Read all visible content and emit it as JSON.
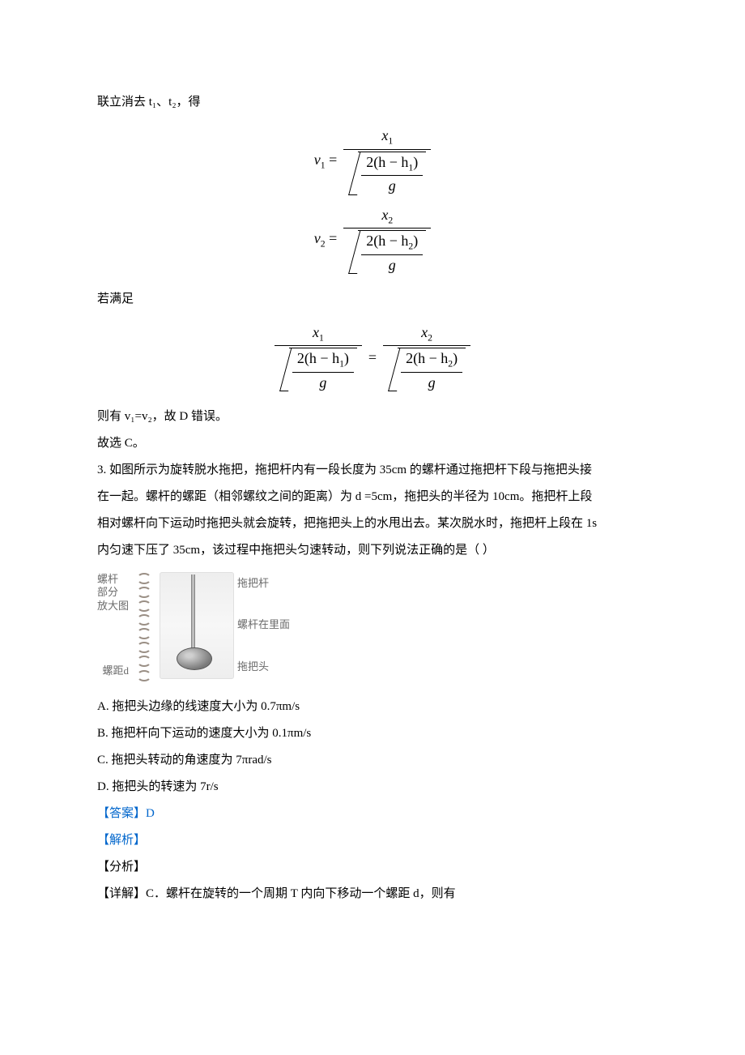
{
  "colors": {
    "text": "#000000",
    "link": "#0066cc",
    "background": "#ffffff",
    "figure_label": "#6b6b6b",
    "screw_color": "#9a8f85",
    "disc_dark": "#7a7a7a"
  },
  "typography": {
    "body_font": "SimSun",
    "math_font": "Times New Roman",
    "body_size_pt": 11,
    "math_size_pt": 13,
    "line_height": 2.2
  },
  "intro_line": "联立消去 t₁、t₂，得",
  "eq1": {
    "lhs": "v",
    "lhs_sub": "1",
    "frac_top": "x",
    "frac_top_sub": "1",
    "inner_num_a": "2(h − h",
    "inner_num_sub": "1",
    "inner_num_b": ")",
    "inner_den": "g"
  },
  "eq2": {
    "lhs": "v",
    "lhs_sub": "2",
    "frac_top": "x",
    "frac_top_sub": "2",
    "inner_num_a": "2(h − h",
    "inner_num_sub": "2",
    "inner_num_b": ")",
    "inner_den": "g"
  },
  "satisfy_text": "若满足",
  "eq3": {
    "left": {
      "top": "x",
      "top_sub": "1",
      "inner_num_a": "2(h − h",
      "inner_num_sub": "1",
      "inner_num_b": ")",
      "inner_den": "g"
    },
    "right": {
      "top": "x",
      "top_sub": "2",
      "inner_num_a": "2(h − h",
      "inner_num_sub": "2",
      "inner_num_b": ")",
      "inner_den": "g"
    }
  },
  "conclusion_1": "则有 v₁=v₂，故 D 错误。",
  "conclusion_2": "故选 C。",
  "q3": {
    "stem_1": "3. 如图所示为旋转脱水拖把，拖把杆内有一段长度为 35cm 的螺杆通过拖把杆下段与拖把头接",
    "stem_2": "在一起。螺杆的螺距（相邻螺纹之间的距离）为 d =5cm，拖把头的半径为 10cm。拖把杆上段",
    "stem_3": "相对螺杆向下运动时拖把头就会旋转，把拖把头上的水甩出去。某次脱水时，拖把杆上段在 1s",
    "stem_4": "内匀速下压了 35cm，该过程中拖把头匀速转动，则下列说法正确的是（  ）",
    "figure": {
      "left_label_1": "螺杆",
      "left_label_2": "部分",
      "left_label_3": "放大图",
      "d_label": "螺距d",
      "r_label_1": "拖把杆",
      "r_label_2": "螺杆在里面",
      "r_label_3": "拖把头",
      "screw_thread_count": 8,
      "screw_thread_color": "#9a8f85"
    },
    "options": {
      "A": "A. 拖把头边缘的线速度大小为 0.7πm/s",
      "B": "B. 拖把杆向下运动的速度大小为 0.1πm/s",
      "C": "C. 拖把头转动的角速度为 7πrad/s",
      "D": "D. 拖把头的转速为 7r/s"
    },
    "answer_label": "【答案】",
    "answer_value": "D",
    "analysis_label": "【解析】",
    "fenxi_label": "【分析】",
    "detail_label": "【详解】C．螺杆在旋转的一个周期 T 内向下移动一个螺距 d，则有"
  }
}
